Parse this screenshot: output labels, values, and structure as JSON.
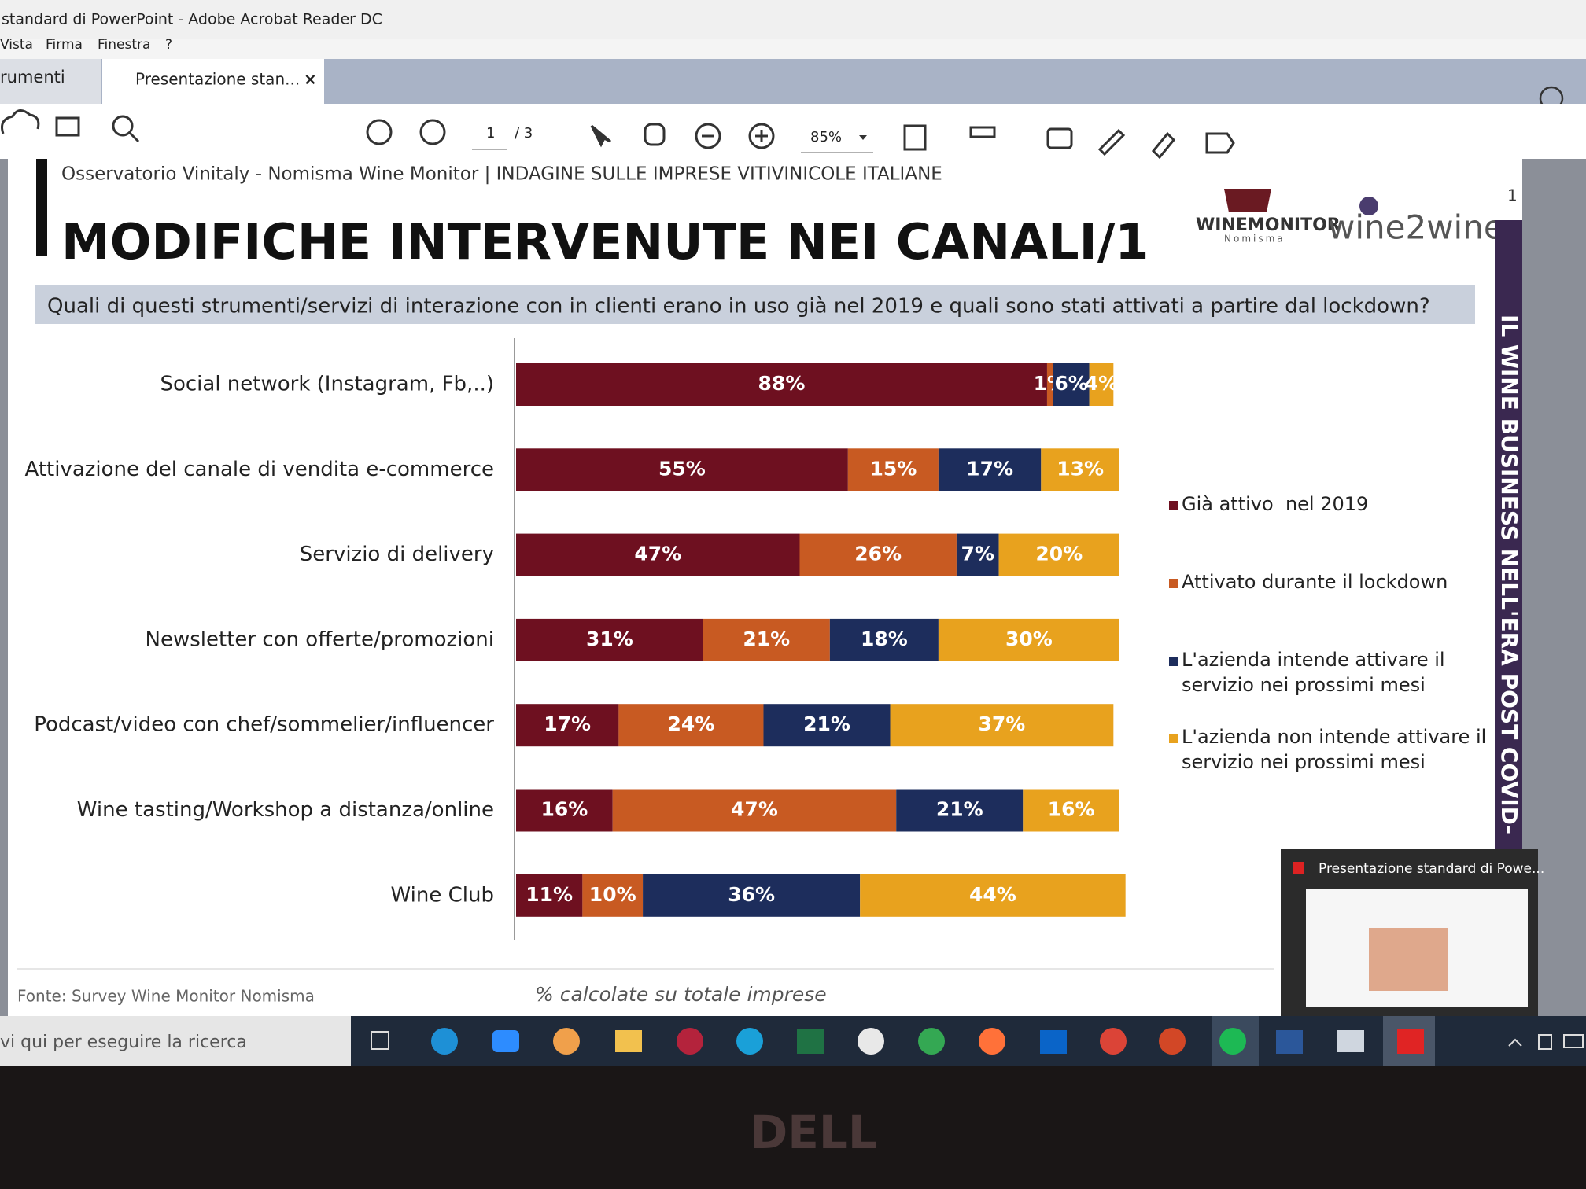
{
  "window": {
    "title": "standard di PowerPoint - Adobe Acrobat Reader DC",
    "menu": [
      "Vista",
      "Firma",
      "Finestra",
      "?"
    ],
    "tabs": [
      "rumenti",
      "Presentazione stan..."
    ],
    "close": "×",
    "toolbar": {
      "page": "1",
      "pages": "/ 3",
      "zoom": "85%"
    }
  },
  "slide": {
    "header": "Osservatorio Vinitaly - Nomisma Wine Monitor | INDAGINE SULLE IMPRESE VITIVINICOLE ITALIANE",
    "title": "MODIFICHE INTERVENUTE NEI CANALI/1",
    "logo": {
      "brand": "WINEMONITOR",
      "sub": "Nomisma",
      "event": "wine2wine"
    },
    "page_number": "1",
    "question": "Quali di questi strumenti/servizi di interazione con in clienti erano in uso già nel 2019 e quali sono stati attivati a partire dal lockdown?",
    "side_banner": "IL WINE BUSINESS NELL'ERA POST COVID-",
    "source": "Fonte: Survey Wine Monitor Nomisma",
    "note": "% calcolate su totale imprese"
  },
  "chart_data": {
    "type": "bar",
    "orientation": "horizontal",
    "stacked": true,
    "categories": [
      "Social network (Instagram, Fb,..)",
      "Attivazione del canale di vendita e-commerce",
      "Servizio di delivery",
      "Newsletter con offerte/promozioni",
      "Podcast/video con chef/sommelier/influencer",
      "Wine tasting/Workshop a distanza/online",
      "Wine Club"
    ],
    "xlim": [
      0,
      100
    ],
    "series": [
      {
        "name": "Già attivo  nel 2019",
        "color": "#6e1020",
        "values": [
          88,
          55,
          47,
          31,
          17,
          16,
          11
        ],
        "value_labels": [
          "88%",
          "55%",
          "47%",
          "31%",
          "17%",
          "16%",
          "11%"
        ]
      },
      {
        "name": "Attivato durante il lockdown",
        "color": "#c85a22",
        "values": [
          1,
          15,
          26,
          21,
          24,
          47,
          10
        ],
        "value_labels": [
          "1%",
          "15%",
          "26%",
          "21%",
          "24%",
          "47%",
          "10%"
        ]
      },
      {
        "name": "L'azienda intende attivare il servizio nei prossimi mesi",
        "color": "#1d2d5c",
        "values": [
          6,
          17,
          7,
          18,
          21,
          21,
          36
        ],
        "value_labels": [
          "6%",
          "17%",
          "7%",
          "18%",
          "21%",
          "21%",
          "36%"
        ]
      },
      {
        "name": "L'azienda non intende attivare il servizio nei prossimi mesi",
        "color": "#e8a21e",
        "values": [
          4,
          13,
          20,
          30,
          37,
          16,
          44
        ],
        "value_labels": [
          "4%",
          "13%",
          "20%",
          "30%",
          "37%",
          "16%",
          "44%"
        ]
      }
    ]
  },
  "taskbar": {
    "search": "vi qui per eseguire la ricerca",
    "preview_title": "Presentazione standard di Powe..."
  },
  "bezel": {
    "brand": "DELL"
  }
}
